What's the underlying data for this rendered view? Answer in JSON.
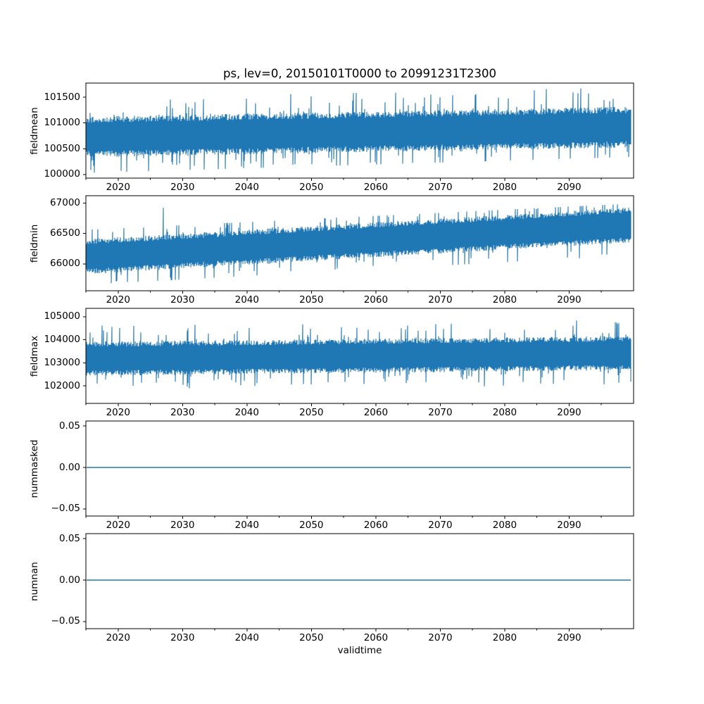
{
  "chart_data": {
    "type": "line",
    "title": "ps, lev=0, 20150101T0000 to 20991231T2300",
    "xlabel": "validtime",
    "line_color": "#1f77b4",
    "grid": false,
    "legend": "none",
    "x_axis": {
      "lim": [
        2015,
        2100
      ],
      "major_ticks": [
        2020,
        2030,
        2040,
        2050,
        2060,
        2070,
        2080,
        2090
      ],
      "major_labels": [
        "2020",
        "2030",
        "2040",
        "2050",
        "2060",
        "2070",
        "2080",
        "2090"
      ],
      "minor_ticks": [
        2015,
        2025,
        2035,
        2045,
        2055,
        2065,
        2075,
        2085,
        2095
      ],
      "data_start": "20150101T0000",
      "data_end": "20991231T2300"
    },
    "subplots": [
      {
        "name": "fieldmean",
        "ylabel": "fieldmean",
        "ylim": [
          99930,
          101775
        ],
        "yticks": [
          100000,
          100500,
          101000,
          101500
        ],
        "ytick_labels": [
          "100000",
          "100500",
          "101000",
          "101500"
        ],
        "series": {
          "kind": "noisy-band",
          "seed": 101,
          "center_start": 100730,
          "center_end": 100920,
          "half_band": 330,
          "top_clamp_start": 101480,
          "top_clamp_end": 101690,
          "bottom_clamp_start": 100030,
          "bottom_clamp_end": 100340,
          "tail_prob": 0.1,
          "tail_scale": 1.3
        }
      },
      {
        "name": "fieldmin",
        "ylabel": "fieldmin",
        "ylim": [
          65560,
          67120
        ],
        "yticks": [
          66000,
          66500,
          67000
        ],
        "ytick_labels": [
          "66000",
          "66500",
          "67000"
        ],
        "series": {
          "kind": "noisy-band",
          "seed": 202,
          "center_start": 66120,
          "center_end": 66640,
          "half_band": 240,
          "top_clamp_start": 66560,
          "top_clamp_end": 66990,
          "bottom_clamp_start": 65660,
          "bottom_clamp_end": 66140,
          "tail_prob": 0.1,
          "tail_scale": 1.3,
          "spike": {
            "year": 2027,
            "value": 66920
          }
        }
      },
      {
        "name": "fieldmax",
        "ylabel": "fieldmax",
        "ylim": [
          101235,
          105367
        ],
        "yticks": [
          102000,
          103000,
          104000,
          105000
        ],
        "ytick_labels": [
          "102000",
          "103000",
          "104000",
          "105000"
        ],
        "series": {
          "kind": "noisy-band",
          "seed": 303,
          "center_start": 103180,
          "center_end": 103420,
          "half_band": 620,
          "top_clamp_start": 104850,
          "top_clamp_end": 105120,
          "bottom_clamp_start": 101700,
          "bottom_clamp_end": 102080,
          "tail_prob": 0.1,
          "tail_scale": 1.2
        }
      },
      {
        "name": "nummasked",
        "ylabel": "nummasked",
        "ylim": [
          -0.0585,
          0.056
        ],
        "yticks": [
          -0.05,
          0,
          0.05
        ],
        "ytick_labels": [
          "−0.05",
          "0.00",
          "0.05"
        ],
        "series": {
          "kind": "constant",
          "value": 0
        }
      },
      {
        "name": "numnan",
        "ylabel": "numnan",
        "ylim": [
          -0.0585,
          0.056
        ],
        "yticks": [
          -0.05,
          0,
          0.05
        ],
        "ytick_labels": [
          "−0.05",
          "0.00",
          "0.05"
        ],
        "series": {
          "kind": "constant",
          "value": 0
        }
      }
    ]
  }
}
